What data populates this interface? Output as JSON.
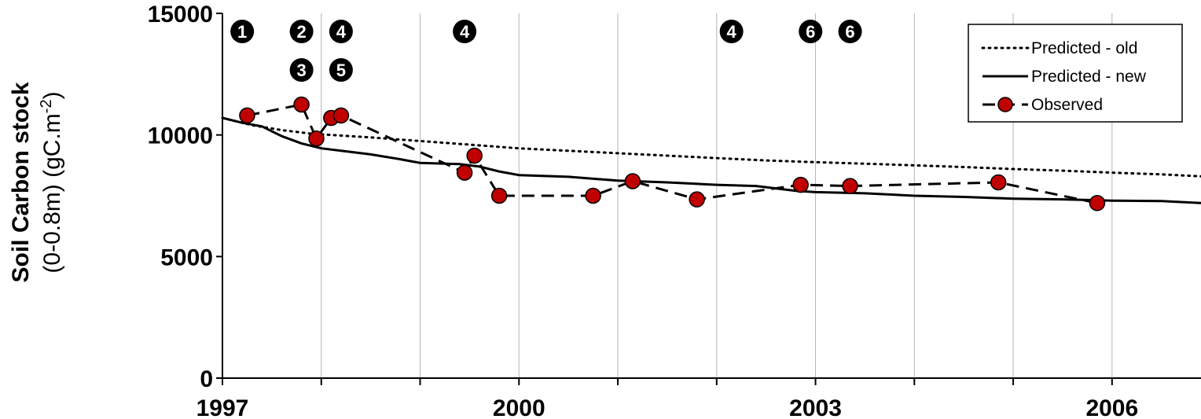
{
  "chart_data": {
    "type": "line",
    "ylabel_line1": "Soil Carbon stock",
    "ylabel_line2_main": "(0-0.8m)  (gC.m",
    "ylabel_line2_sup": "-2",
    "ylabel_line2_end": ")",
    "xlim": [
      1997,
      2006.9
    ],
    "ylim": [
      0,
      15000
    ],
    "x_ticks": [
      1997,
      2000,
      2003,
      2006
    ],
    "x_tick_labels": [
      "1997",
      "2000",
      "2003",
      "2006"
    ],
    "x_minor_ticks": [
      1998,
      1999,
      2001,
      2002,
      2004,
      2005
    ],
    "y_ticks": [
      0,
      5000,
      10000,
      15000
    ],
    "y_tick_labels": [
      "0",
      "5000",
      "10000",
      "15000"
    ],
    "grid": "vertical",
    "legend_position": "top-right",
    "series": [
      {
        "name": "Predicted - old",
        "style": "dotted",
        "points": [
          [
            1997.0,
            10700
          ],
          [
            1997.3,
            10400
          ],
          [
            1997.6,
            10200
          ],
          [
            1997.9,
            10050
          ],
          [
            1998.5,
            9900
          ],
          [
            1999.0,
            9750
          ],
          [
            1999.5,
            9600
          ],
          [
            2000.0,
            9450
          ],
          [
            2000.5,
            9350
          ],
          [
            2001.0,
            9250
          ],
          [
            2001.5,
            9150
          ],
          [
            2002.0,
            9050
          ],
          [
            2002.5,
            8950
          ],
          [
            2003.0,
            8880
          ],
          [
            2003.5,
            8820
          ],
          [
            2004.0,
            8750
          ],
          [
            2004.5,
            8680
          ],
          [
            2005.0,
            8600
          ],
          [
            2005.5,
            8530
          ],
          [
            2006.0,
            8450
          ],
          [
            2006.5,
            8380
          ],
          [
            2006.9,
            8300
          ]
        ]
      },
      {
        "name": "Predicted - new",
        "style": "solid",
        "points": [
          [
            1997.0,
            10700
          ],
          [
            1997.2,
            10500
          ],
          [
            1997.4,
            10350
          ],
          [
            1997.6,
            9950
          ],
          [
            1997.8,
            9650
          ],
          [
            1998.0,
            9450
          ],
          [
            1998.2,
            9350
          ],
          [
            1998.5,
            9200
          ],
          [
            1998.8,
            9000
          ],
          [
            1999.0,
            8850
          ],
          [
            1999.4,
            8800
          ],
          [
            1999.6,
            8700
          ],
          [
            1999.8,
            8500
          ],
          [
            2000.0,
            8350
          ],
          [
            2000.5,
            8280
          ],
          [
            2001.0,
            8120
          ],
          [
            2001.5,
            8050
          ],
          [
            2002.0,
            7950
          ],
          [
            2002.4,
            7900
          ],
          [
            2002.8,
            7700
          ],
          [
            2003.0,
            7650
          ],
          [
            2003.5,
            7600
          ],
          [
            2004.0,
            7500
          ],
          [
            2004.5,
            7450
          ],
          [
            2005.0,
            7380
          ],
          [
            2005.5,
            7350
          ],
          [
            2006.0,
            7300
          ],
          [
            2006.5,
            7280
          ],
          [
            2006.9,
            7200
          ]
        ]
      },
      {
        "name": "Observed",
        "style": "dashed-markers",
        "points": [
          [
            1997.25,
            10800
          ],
          [
            1997.8,
            11250
          ],
          [
            1997.95,
            9850
          ],
          [
            1998.1,
            10700
          ],
          [
            1998.2,
            10800
          ],
          [
            1999.45,
            8450
          ],
          [
            1999.55,
            9150
          ],
          [
            1999.8,
            7500
          ],
          [
            2000.75,
            7500
          ],
          [
            2001.15,
            8100
          ],
          [
            2001.8,
            7350
          ],
          [
            2002.85,
            7950
          ],
          [
            2003.35,
            7900
          ],
          [
            2004.85,
            8050
          ],
          [
            2005.85,
            7200
          ]
        ]
      }
    ],
    "annotations": [
      {
        "label": "1",
        "x": 1997.2,
        "row": 1
      },
      {
        "label": "2",
        "x": 1997.8,
        "row": 1
      },
      {
        "label": "3",
        "x": 1997.8,
        "row": 2
      },
      {
        "label": "4",
        "x": 1998.2,
        "row": 1
      },
      {
        "label": "5",
        "x": 1998.2,
        "row": 2
      },
      {
        "label": "4",
        "x": 1999.45,
        "row": 1
      },
      {
        "label": "4",
        "x": 2002.15,
        "row": 1
      },
      {
        "label": "6",
        "x": 2002.95,
        "row": 1
      },
      {
        "label": "6",
        "x": 2003.35,
        "row": 1
      }
    ],
    "colors": {
      "observed_marker": "#c00000",
      "line": "#000000",
      "grid": "#b4b4b4"
    }
  }
}
